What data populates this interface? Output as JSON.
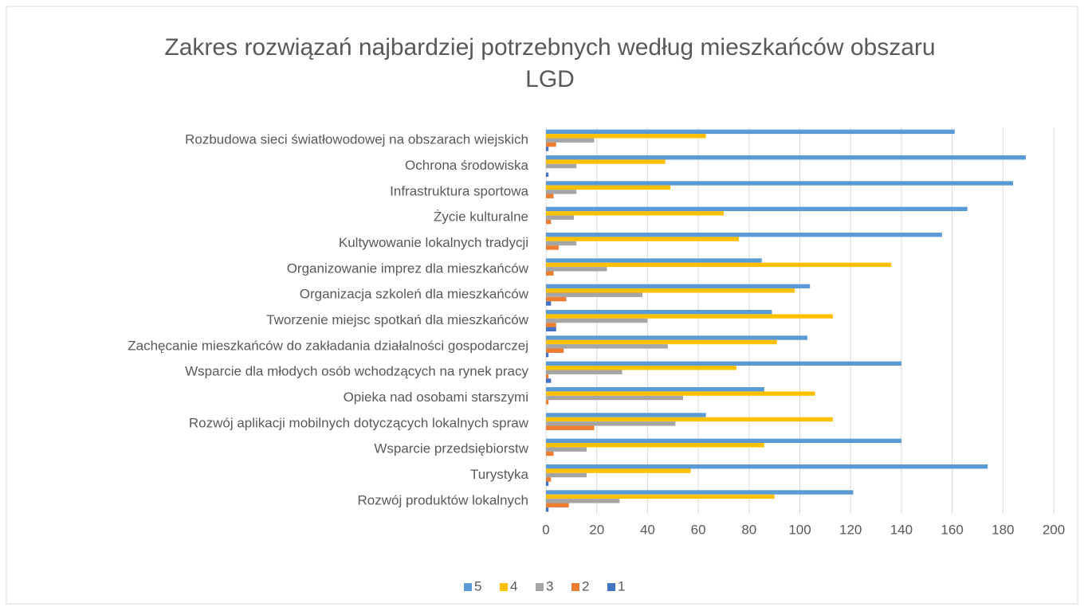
{
  "chart_data": {
    "type": "hbar",
    "title": "Zakres rozwiązań najbardziej potrzebnych według mieszkańców obszaru LGD",
    "categories": [
      "Rozbudowa sieci światłowodowej na obszarach wiejskich",
      "Ochrona środowiska",
      "Infrastruktura sportowa",
      "Życie kulturalne",
      "Kultywowanie lokalnych tradycji",
      "Organizowanie imprez dla mieszkańców",
      "Organizacja szkoleń dla mieszkańców",
      "Tworzenie miejsc spotkań dla mieszkańców",
      "Zachęcanie mieszkańców do zakładania działalności gospodarczej",
      "Wsparcie dla młodych osób wchodzących na rynek pracy",
      "Opieka nad osobami starszymi",
      "Rozwój aplikacji mobilnych dotyczących lokalnych spraw",
      "Wsparcie przedsiębiorstw",
      "Turystyka",
      "Rozwój produktów lokalnych"
    ],
    "series": [
      {
        "name": "5",
        "color": "#5b9bd5",
        "values": [
          161,
          189,
          184,
          166,
          156,
          85,
          104,
          89,
          103,
          140,
          86,
          63,
          140,
          174,
          121
        ]
      },
      {
        "name": "4",
        "color": "#ffc000",
        "values": [
          63,
          47,
          49,
          70,
          76,
          136,
          98,
          113,
          91,
          75,
          106,
          113,
          86,
          57,
          90
        ]
      },
      {
        "name": "3",
        "color": "#a5a5a5",
        "values": [
          19,
          12,
          12,
          11,
          12,
          24,
          38,
          40,
          48,
          30,
          54,
          51,
          16,
          16,
          29
        ]
      },
      {
        "name": "2",
        "color": "#ed7d31",
        "values": [
          4,
          0,
          3,
          2,
          5,
          3,
          8,
          4,
          7,
          1,
          1,
          19,
          3,
          2,
          9
        ]
      },
      {
        "name": "1",
        "color": "#4472c4",
        "values": [
          1,
          1,
          0,
          0,
          0,
          0,
          2,
          4,
          1,
          2,
          0,
          0,
          0,
          1,
          1
        ]
      }
    ],
    "xlim": [
      0,
      200
    ],
    "xticks": [
      0,
      20,
      40,
      60,
      80,
      100,
      120,
      140,
      160,
      180,
      200
    ],
    "grid": true,
    "legend": "bottom"
  }
}
